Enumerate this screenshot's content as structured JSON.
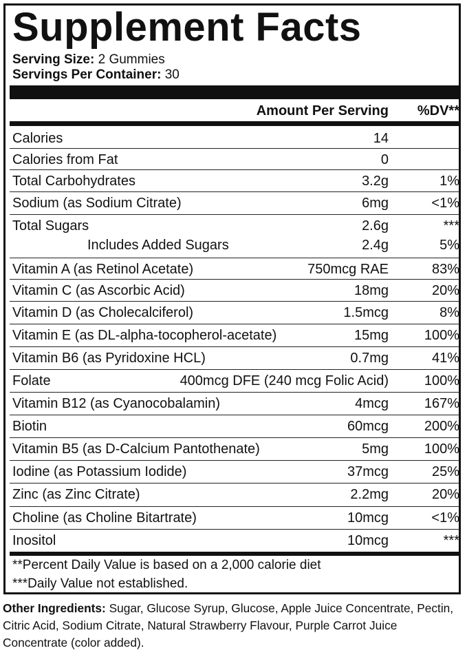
{
  "title": "Supplement Facts",
  "serving": {
    "size_label": "Serving Size:",
    "size_value": " 2 Gummies",
    "per_container_label": "Servings Per Container:",
    "per_container_value": " 30"
  },
  "columns": {
    "amount": "Amount Per Serving",
    "dv": "%DV**"
  },
  "rows": [
    {
      "name": "Calories",
      "amount": "14",
      "dv": ""
    },
    {
      "name": "Calories from Fat",
      "amount": "0",
      "dv": ""
    },
    {
      "name": "Total Carbohydrates",
      "amount": "3.2g",
      "dv": "1%"
    },
    {
      "name": "Sodium (as Sodium Citrate)",
      "amount": "6mg",
      "dv": "<1%"
    },
    {
      "name": "Total Sugars",
      "amount": "2.6g",
      "dv": "***",
      "sub_name": "Includes Added Sugars",
      "sub_amount": "2.4g",
      "sub_dv": "5%"
    },
    {
      "name": "Vitamin A (as Retinol Acetate)",
      "amount": "750mcg RAE",
      "dv": "83%"
    },
    {
      "name": "Vitamin C (as Ascorbic Acid)",
      "amount": "18mg",
      "dv": "20%"
    },
    {
      "name": "Vitamin D (as Cholecalciferol)",
      "amount": "1.5mcg",
      "dv": "8%"
    },
    {
      "name": "Vitamin E (as DL-alpha-tocopherol-acetate)",
      "amount": "15mg",
      "dv": "100%"
    },
    {
      "name": "Vitamin B6 (as Pyridoxine HCL)",
      "amount": "0.7mg",
      "dv": "41%"
    },
    {
      "name": "Folate",
      "amount": "400mcg DFE (240 mcg Folic Acid)",
      "dv": "100%"
    },
    {
      "name": "Vitamin B12 (as Cyanocobalamin)",
      "amount": "4mcg",
      "dv": "167%"
    },
    {
      "name": "Biotin",
      "amount": "60mcg",
      "dv": "200%"
    },
    {
      "name": "Vitamin B5 (as D-Calcium Pantothenate)",
      "amount": "5mg",
      "dv": "100%"
    },
    {
      "name": "Iodine (as Potassium Iodide)",
      "amount": "37mcg",
      "dv": "25%"
    },
    {
      "name": "Zinc (as Zinc Citrate)",
      "amount": "2.2mg",
      "dv": "20%"
    },
    {
      "name": "Choline (as Choline Bitartrate)",
      "amount": "10mcg",
      "dv": "<1%"
    },
    {
      "name": "Inositol",
      "amount": "10mcg",
      "dv": "***"
    }
  ],
  "footnotes": {
    "dv_note": "**Percent Daily Value is based on a 2,000 calorie diet",
    "not_established": "***Daily Value not established."
  },
  "ingredients": {
    "label": "Other Ingredients:",
    "text": " Sugar, Glucose Syrup, Glucose, Apple Juice Concentrate, Pectin, Citric Acid, Sodium Citrate, Natural Strawberry Flavour, Purple Carrot Juice Concentrate (color added)."
  }
}
